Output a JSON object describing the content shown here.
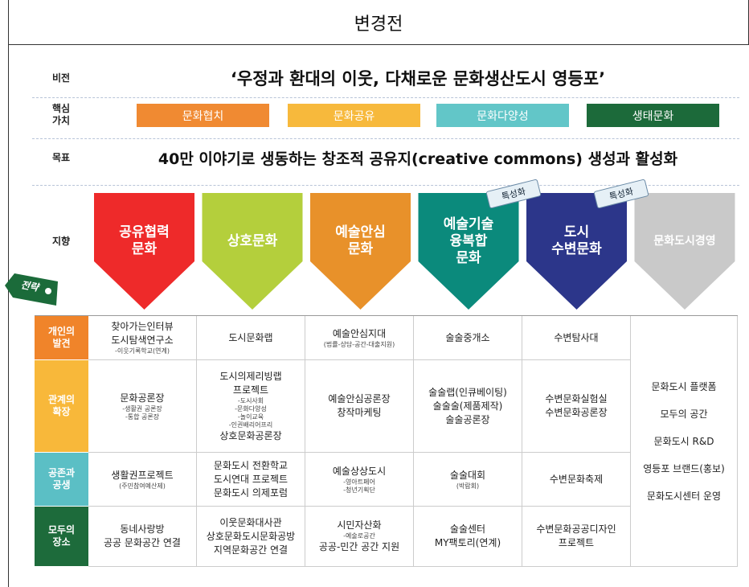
{
  "header": {
    "title": "변경전"
  },
  "rows": {
    "vision": {
      "label": [
        "비전"
      ],
      "text": "‘우정과 환대의 이웃, 다채로운 문화생산도시 영등포’"
    },
    "values": {
      "label": [
        "핵심",
        "가치"
      ],
      "items": [
        {
          "text": "문화협치",
          "color": "#f08a32"
        },
        {
          "text": "문화공유",
          "color": "#f7b93c"
        },
        {
          "text": "문화다양성",
          "color": "#62c6c8"
        },
        {
          "text": "생태문화",
          "color": "#1c6a3a"
        }
      ]
    },
    "goal": {
      "label": [
        "목표"
      ],
      "text": "40만 이야기로 생동하는 창조적 공유지(creative commons) 생성과 활성화"
    },
    "direction": {
      "label": [
        "지향"
      ],
      "items": [
        {
          "lines": [
            "공유협력",
            "문화"
          ],
          "color": "#ee2a2a"
        },
        {
          "lines": [
            "상호문화"
          ],
          "color": "#b4cf3c"
        },
        {
          "lines": [
            "예술안심",
            "문화"
          ],
          "color": "#e8912a"
        },
        {
          "lines": [
            "예술기술",
            "융복합",
            "문화"
          ],
          "color": "#0b8a7c",
          "tag": "특성화"
        },
        {
          "lines": [
            "도시",
            "수변문화"
          ],
          "color": "#2c368a",
          "tag": "특성화"
        },
        {
          "lines": [
            "문화도시경영"
          ],
          "color": "#c9c9c9"
        }
      ]
    }
  },
  "strategy_tag": "전략",
  "table": {
    "row_labels": [
      {
        "lines": [
          "개인의",
          "발견"
        ],
        "color": "#f0842a"
      },
      {
        "lines": [
          "관계의",
          "확장"
        ],
        "color": "#f8b83a"
      },
      {
        "lines": [
          "공존과",
          "공생"
        ],
        "color": "#5bbfc5"
      },
      {
        "lines": [
          "모두의",
          "장소"
        ],
        "color": "#1d6b3b"
      }
    ],
    "rows": [
      [
        [
          {
            "text": "찾아가는인터뷰"
          },
          {
            "text": "도시탐색연구소"
          },
          {
            "text": "-이웃기록학교(연계)",
            "small": true
          }
        ],
        [
          {
            "text": "도시문화랩"
          }
        ],
        [
          {
            "text": "예술안심지대"
          },
          {
            "text": "(법률-상담-공간-대출지원)",
            "small": true
          }
        ],
        [
          {
            "text": "술술중개소"
          }
        ],
        [
          {
            "text": "수변탐사대"
          }
        ]
      ],
      [
        [
          {
            "text": "문화공론장"
          },
          {
            "text": "-생활권 공론장",
            "small": true
          },
          {
            "text": "-통합 공론장",
            "small": true
          }
        ],
        [
          {
            "text": "도시의제리빙랩"
          },
          {
            "text": "프로젝트"
          },
          {
            "text": "-도시사회",
            "small": true
          },
          {
            "text": "-문화다양성",
            "small": true
          },
          {
            "text": "-놀이교육",
            "small": true
          },
          {
            "text": "-인권배리어프리",
            "small": true
          },
          {
            "text": "상호문화공론장"
          }
        ],
        [
          {
            "text": "예술안심공론장"
          },
          {
            "text": "창작마케팅"
          }
        ],
        [
          {
            "text": "술술랩(인큐베이팅)"
          },
          {
            "text": "술술술(제품제작)"
          },
          {
            "text": "술술공론장"
          }
        ],
        [
          {
            "text": "수변문화실험실"
          },
          {
            "text": "수변문화공론장"
          }
        ]
      ],
      [
        [
          {
            "text": "생활권프로젝트"
          },
          {
            "text": "(주민참여예산제)",
            "small": true
          }
        ],
        [
          {
            "text": "문화도시 전환학교"
          },
          {
            "text": "도시연대 프로젝트"
          },
          {
            "text": "문화도시 의제포럼"
          }
        ],
        [
          {
            "text": "예술상상도시"
          },
          {
            "text": "-영아트페어",
            "small": true
          },
          {
            "text": "-청년기획단",
            "small": true
          }
        ],
        [
          {
            "text": "술술대회"
          },
          {
            "text": "(박람회)",
            "small": true
          }
        ],
        [
          {
            "text": "수변문화축제"
          }
        ]
      ],
      [
        [
          {
            "text": "동네사랑방"
          },
          {
            "text": "공공 문화공간 연결"
          }
        ],
        [
          {
            "text": "이웃문화대사관"
          },
          {
            "text": "상호문화도시문화공방"
          },
          {
            "text": "지역문화공간 연결"
          }
        ],
        [
          {
            "text": "시민자산화"
          },
          {
            "text": "-예술로공간",
            "small": true
          },
          {
            "text": "공공-민간 공간 지원"
          }
        ],
        [
          {
            "text": "술술센터"
          },
          {
            "text": "MY팩토리(연계)"
          }
        ],
        [
          {
            "text": "수변문화공공디자인"
          },
          {
            "text": "프로젝트"
          }
        ]
      ]
    ],
    "merged": [
      "문화도시 플랫폼",
      "모두의 공간",
      "문화도시 R&D",
      "영등포 브랜드(홍보)",
      "문화도시센터 운영"
    ]
  }
}
